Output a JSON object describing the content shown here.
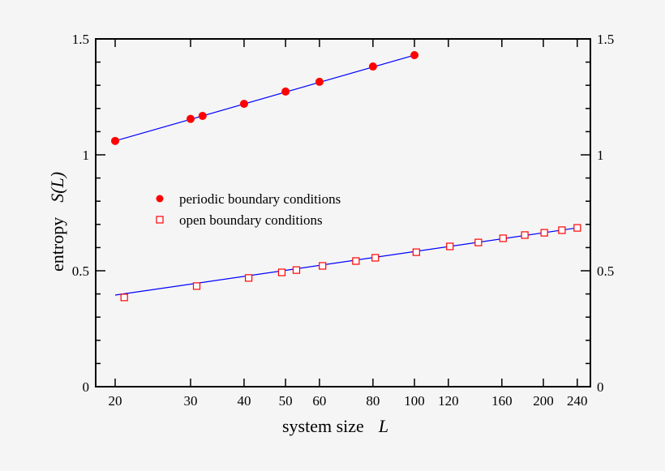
{
  "chart_data": {
    "type": "scatter",
    "xlabel": "system size",
    "xlabel_var": "L",
    "ylabel": "entropy",
    "ylabel_var": "S(L)",
    "x_scale": "log",
    "xlim": [
      18,
      250
    ],
    "ylim": [
      0,
      1.5
    ],
    "x_ticks": [
      20,
      30,
      40,
      50,
      60,
      80,
      100,
      120,
      160,
      200,
      240
    ],
    "y_ticks": [
      0,
      0.5,
      1,
      1.5
    ],
    "y_tick_labels": [
      "0",
      "0.5",
      "1",
      "1.5"
    ],
    "grid": false,
    "legend_position": "center-left",
    "series": [
      {
        "name": "periodic boundary conditions",
        "marker": "filled-circle",
        "color": "#ff0000",
        "x": [
          20,
          30,
          32,
          40,
          50,
          60,
          80,
          100
        ],
        "y": [
          1.06,
          1.155,
          1.168,
          1.22,
          1.273,
          1.315,
          1.381,
          1.43
        ],
        "fit": {
          "color": "#0000ff",
          "x": [
            20,
            100
          ],
          "y": [
            1.06,
            1.43
          ]
        }
      },
      {
        "name": "open boundary conditions",
        "marker": "open-square",
        "color": "#ff0000",
        "x": [
          21,
          31,
          41,
          49,
          53,
          61,
          73,
          81,
          101,
          121,
          141,
          161,
          181,
          201,
          221,
          240
        ],
        "y": [
          0.385,
          0.434,
          0.469,
          0.493,
          0.503,
          0.521,
          0.542,
          0.556,
          0.58,
          0.605,
          0.622,
          0.64,
          0.654,
          0.664,
          0.675,
          0.685
        ],
        "fit": {
          "color": "#0000ff",
          "x": [
            20,
            240
          ],
          "y": [
            0.395,
            0.685
          ]
        }
      }
    ]
  }
}
